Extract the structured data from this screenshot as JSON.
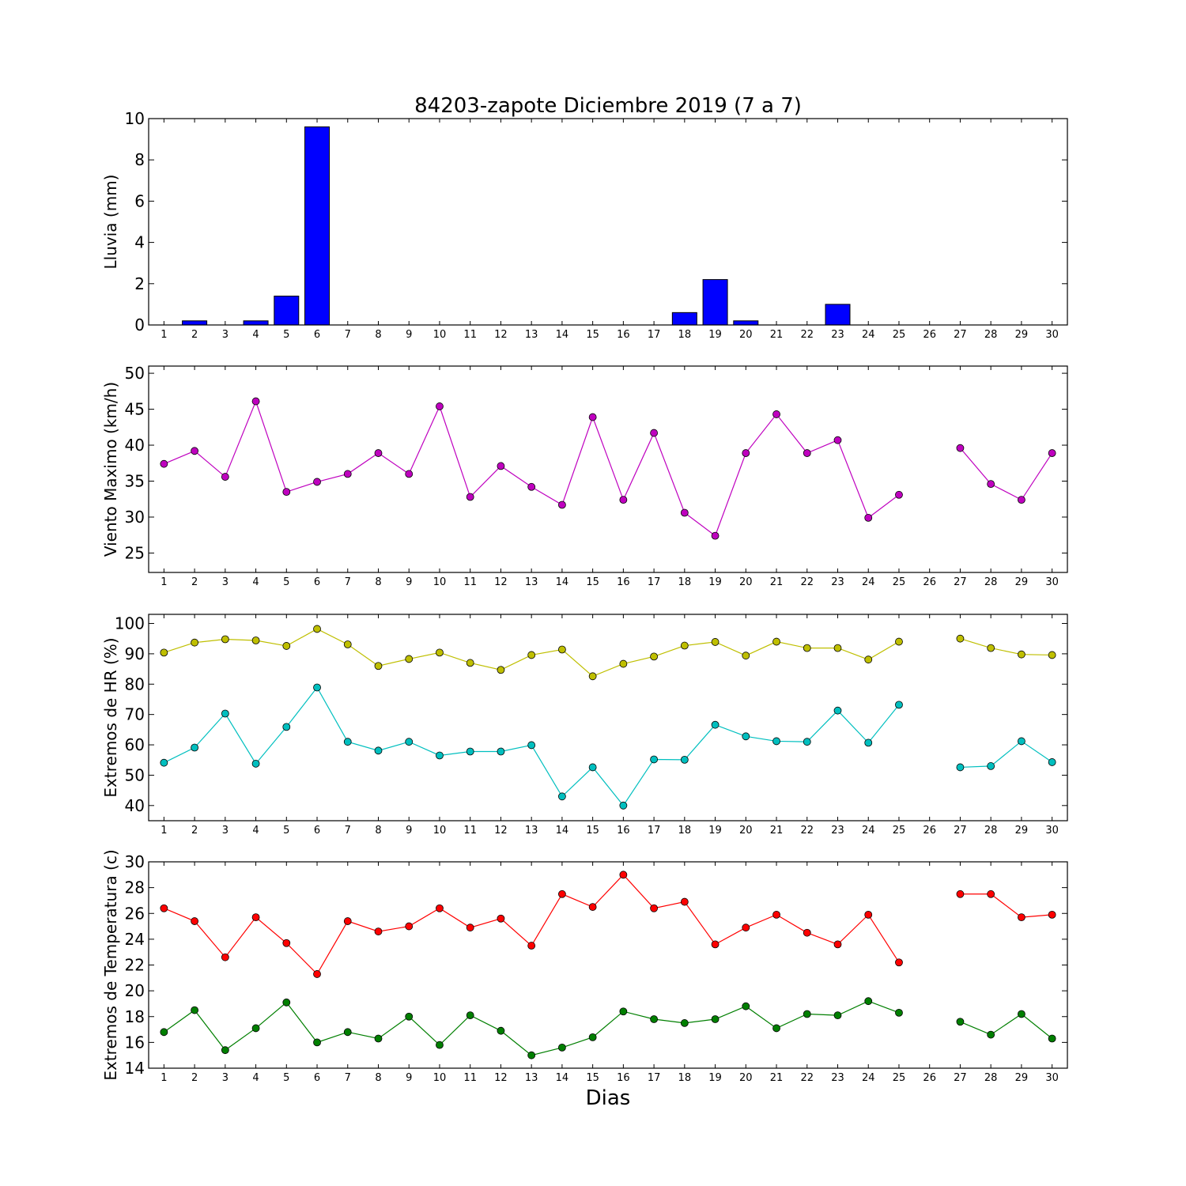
{
  "title": "84203-zapote Diciembre 2019  (7 a 7)",
  "xlabel": "Dias",
  "chart_data": [
    {
      "type": "bar",
      "ylabel": "Lluvia (mm)",
      "ylim": [
        0,
        10
      ],
      "yticks": [
        0,
        2,
        4,
        6,
        8,
        10
      ],
      "x": [
        1,
        2,
        3,
        4,
        5,
        6,
        7,
        8,
        9,
        10,
        11,
        12,
        13,
        14,
        15,
        16,
        17,
        18,
        19,
        20,
        21,
        22,
        23,
        24,
        25,
        26,
        27,
        28,
        29,
        30
      ],
      "values": [
        0,
        0.2,
        0,
        0.2,
        1.4,
        9.6,
        0,
        0,
        0,
        0,
        0,
        0,
        0,
        0,
        0,
        0,
        0,
        0.6,
        2.2,
        0.2,
        0,
        0,
        1.0,
        0,
        0,
        0,
        0,
        0,
        0,
        0
      ],
      "color": "#0000ff"
    },
    {
      "type": "line",
      "ylabel": "Viento Maximo (km/h)",
      "ylim": [
        22.3,
        51
      ],
      "yticks": [
        25,
        30,
        35,
        40,
        45,
        50
      ],
      "x": [
        1,
        2,
        3,
        4,
        5,
        6,
        7,
        8,
        9,
        10,
        11,
        12,
        13,
        14,
        15,
        16,
        17,
        18,
        19,
        20,
        21,
        22,
        23,
        24,
        25,
        26,
        27,
        28,
        29,
        30
      ],
      "series": [
        {
          "values": [
            37.4,
            39.2,
            35.6,
            46.1,
            33.5,
            34.9,
            36.0,
            38.9,
            36.0,
            45.4,
            32.8,
            37.1,
            34.2,
            31.7,
            43.9,
            32.4,
            41.7,
            30.6,
            27.4,
            38.9,
            44.3,
            38.9,
            40.7,
            29.9,
            33.1,
            null,
            39.6,
            34.6,
            32.4,
            38.9
          ],
          "color": "#bf00bf"
        }
      ]
    },
    {
      "type": "line",
      "ylabel": "Extremos de HR (%)",
      "ylim": [
        35,
        103
      ],
      "yticks": [
        40,
        50,
        60,
        70,
        80,
        90,
        100
      ],
      "x": [
        1,
        2,
        3,
        4,
        5,
        6,
        7,
        8,
        9,
        10,
        11,
        12,
        13,
        14,
        15,
        16,
        17,
        18,
        19,
        20,
        21,
        22,
        23,
        24,
        25,
        26,
        27,
        28,
        29,
        30
      ],
      "series": [
        {
          "values": [
            90.4,
            93.7,
            94.8,
            94.4,
            92.6,
            98.2,
            93.1,
            86.0,
            88.3,
            90.4,
            87.0,
            84.7,
            89.6,
            91.4,
            82.6,
            86.7,
            89.1,
            92.7,
            93.9,
            89.4,
            94.0,
            91.9,
            91.9,
            88.1,
            94.0,
            null,
            95.0,
            91.9,
            89.8,
            89.6
          ],
          "color": "#bfbf00"
        },
        {
          "values": [
            54.1,
            59.1,
            70.3,
            53.8,
            65.9,
            78.9,
            61.0,
            58.1,
            61.0,
            56.5,
            57.8,
            57.8,
            59.9,
            43.0,
            52.6,
            40.0,
            55.2,
            55.1,
            66.6,
            62.8,
            61.2,
            61.0,
            71.3,
            60.7,
            73.2,
            null,
            52.6,
            53.0,
            61.2,
            54.3
          ],
          "color": "#00bfbf"
        }
      ]
    },
    {
      "type": "line",
      "ylabel": "Extremos de Temperatura (c)",
      "ylim": [
        14,
        30
      ],
      "yticks": [
        14,
        16,
        18,
        20,
        22,
        24,
        26,
        28,
        30
      ],
      "x": [
        1,
        2,
        3,
        4,
        5,
        6,
        7,
        8,
        9,
        10,
        11,
        12,
        13,
        14,
        15,
        16,
        17,
        18,
        19,
        20,
        21,
        22,
        23,
        24,
        25,
        26,
        27,
        28,
        29,
        30
      ],
      "series": [
        {
          "values": [
            26.4,
            25.4,
            22.6,
            25.7,
            23.7,
            21.3,
            25.4,
            24.6,
            25.0,
            26.4,
            24.9,
            25.6,
            23.5,
            27.5,
            26.5,
            29.0,
            26.4,
            26.9,
            23.6,
            24.9,
            25.9,
            24.5,
            23.6,
            25.9,
            22.2,
            null,
            27.5,
            27.5,
            25.7,
            25.9
          ],
          "color": "#ff0000"
        },
        {
          "values": [
            16.8,
            18.5,
            15.4,
            17.1,
            19.1,
            16.0,
            16.8,
            16.3,
            18.0,
            15.8,
            18.1,
            16.9,
            15.0,
            15.6,
            16.4,
            18.4,
            17.8,
            17.5,
            17.8,
            18.8,
            17.1,
            18.2,
            18.1,
            19.2,
            18.3,
            null,
            17.6,
            16.6,
            18.2,
            16.3
          ],
          "color": "#007f00"
        }
      ]
    }
  ]
}
